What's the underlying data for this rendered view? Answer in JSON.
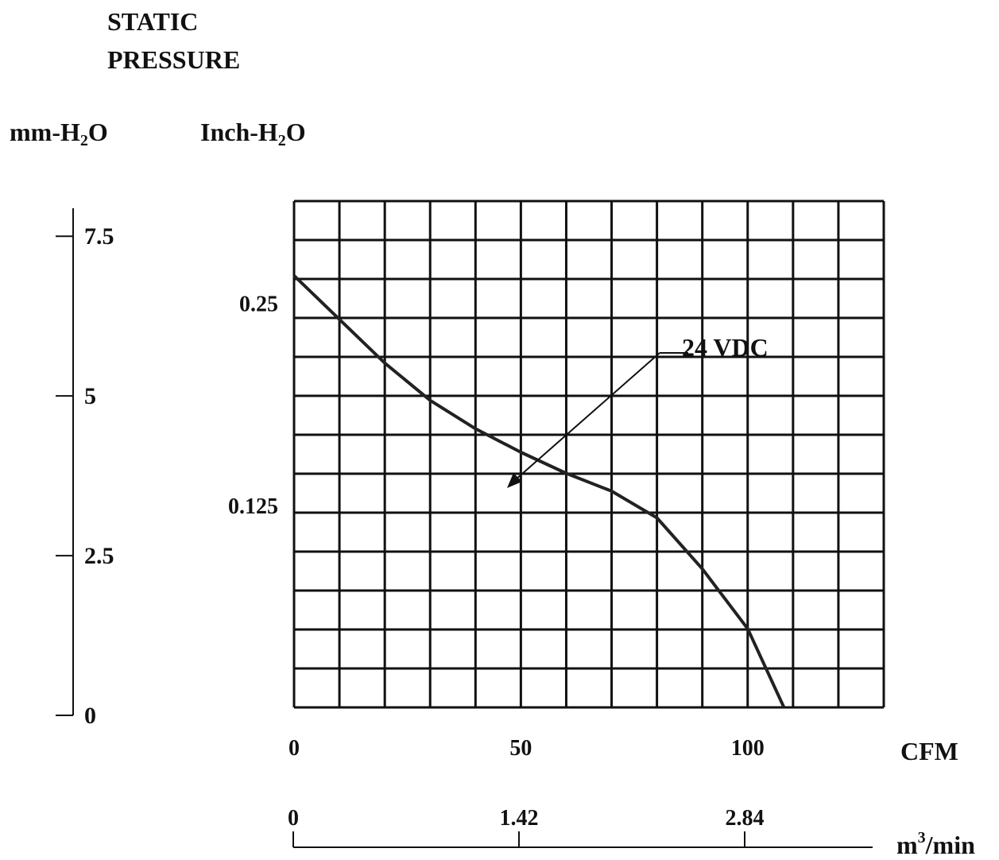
{
  "chart_data": {
    "type": "line",
    "title_line1": "STATIC",
    "title_line2": "PRESSURE",
    "y_axis_mm": {
      "unit_base": "mm-H",
      "unit_sub": "2",
      "unit_tail": "O",
      "ticks": [
        {
          "value": 7.5,
          "label": "7.5"
        },
        {
          "value": 5,
          "label": "5"
        },
        {
          "value": 2.5,
          "label": "2.5"
        },
        {
          "value": 0,
          "label": "0"
        }
      ],
      "range": [
        0,
        8.15
      ]
    },
    "y_axis_inch": {
      "unit_base": "Inch-H",
      "unit_sub": "2",
      "unit_tail": "O",
      "ticks": [
        {
          "value": 0.25,
          "label": "0.25"
        },
        {
          "value": 0.125,
          "label": "0.125"
        }
      ],
      "range": [
        0,
        0.3125
      ]
    },
    "x_axis_cfm": {
      "unit": "CFM",
      "ticks": [
        {
          "value": 0,
          "label": "0"
        },
        {
          "value": 50,
          "label": "50"
        },
        {
          "value": 100,
          "label": "100"
        }
      ],
      "range": [
        0,
        130
      ]
    },
    "x_axis_m3": {
      "unit_base": "m",
      "unit_sup": "3",
      "unit_tail": "/min",
      "ticks": [
        {
          "value": 0,
          "label": "0"
        },
        {
          "value": 1.42,
          "label": "1.42"
        },
        {
          "value": 2.84,
          "label": "2.84"
        }
      ]
    },
    "grid": true,
    "grid_divisions": {
      "x": 13,
      "y": 13
    },
    "series": [
      {
        "name": "24 VDC",
        "color": "#222222",
        "x": [
          0,
          10,
          20,
          30,
          40,
          50,
          60,
          70,
          80,
          90,
          100,
          108
        ],
        "y": [
          0.2665,
          0.2395,
          0.2125,
          0.1895,
          0.172,
          0.1575,
          0.1445,
          0.1335,
          0.117,
          0.0855,
          0.0485,
          0.0
        ]
      }
    ],
    "annotation": {
      "text": "24 VDC",
      "points_to_x": 47,
      "points_to_y": 0.1615
    }
  }
}
